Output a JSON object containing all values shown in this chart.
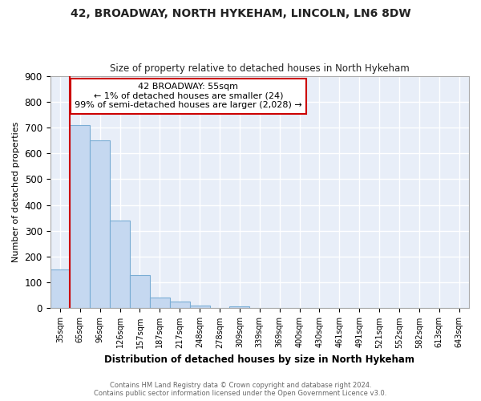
{
  "title1": "42, BROADWAY, NORTH HYKEHAM, LINCOLN, LN6 8DW",
  "title2": "Size of property relative to detached houses in North Hykeham",
  "xlabel": "Distribution of detached houses by size in North Hykeham",
  "ylabel": "Number of detached properties",
  "categories": [
    "35sqm",
    "65sqm",
    "96sqm",
    "126sqm",
    "157sqm",
    "187sqm",
    "217sqm",
    "248sqm",
    "278sqm",
    "309sqm",
    "339sqm",
    "369sqm",
    "400sqm",
    "430sqm",
    "461sqm",
    "491sqm",
    "521sqm",
    "552sqm",
    "582sqm",
    "613sqm",
    "643sqm"
  ],
  "values": [
    150,
    710,
    650,
    340,
    130,
    42,
    27,
    10,
    0,
    8,
    0,
    0,
    0,
    0,
    0,
    0,
    0,
    0,
    0,
    0,
    0
  ],
  "bar_color": "#c5d8f0",
  "bar_edge_color": "#7aadd4",
  "annotation_box_color": "#ffffff",
  "annotation_border_color": "#cc0000",
  "property_line_color": "#cc0000",
  "annotation_text_line1": "42 BROADWAY: 55sqm",
  "annotation_text_line2": "← 1% of detached houses are smaller (24)",
  "annotation_text_line3": "99% of semi-detached houses are larger (2,028) →",
  "footer1": "Contains HM Land Registry data © Crown copyright and database right 2024.",
  "footer2": "Contains public sector information licensed under the Open Government Licence v3.0.",
  "ylim": [
    0,
    900
  ],
  "background_color": "#e8eef8"
}
